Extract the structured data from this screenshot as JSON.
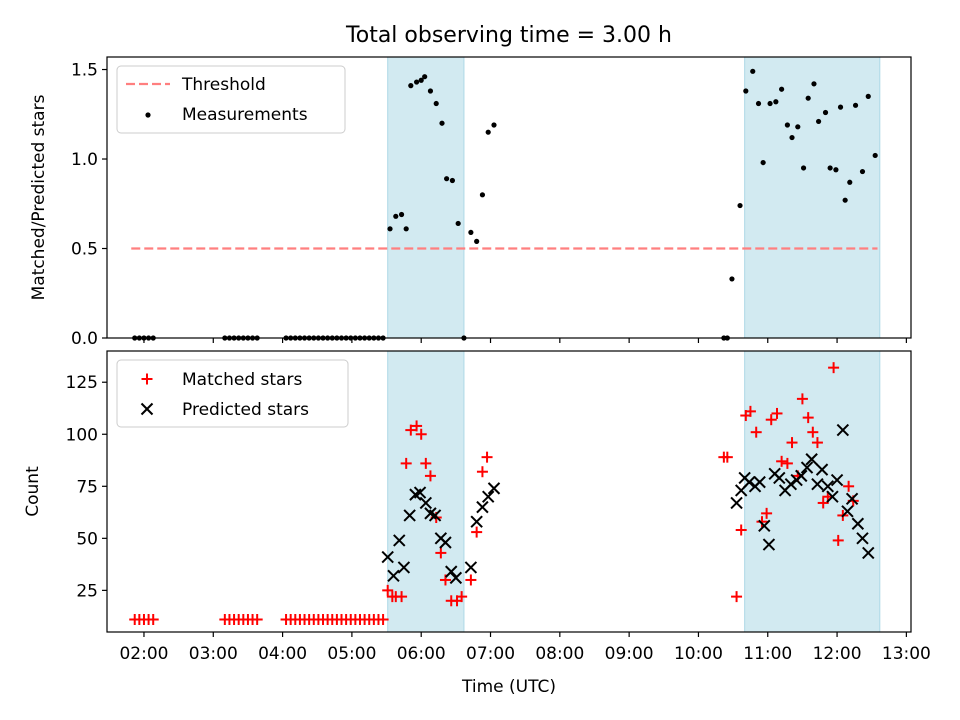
{
  "colors": {
    "threshold": "#ff7f7f",
    "measurement": "#000000",
    "matched": "#ff0000",
    "predicted": "#000000",
    "shade": "#add8e6"
  },
  "chart_data": [
    {
      "type": "scatter",
      "title": "Total observing time = 3.00 h",
      "xlabel": "",
      "ylabel": "Matched/Predicted stars",
      "xlim": [
        "01:28",
        "13:04"
      ],
      "ylim": [
        0,
        1.57
      ],
      "yticks": [
        0.0,
        0.5,
        1.0,
        1.5
      ],
      "ytick_labels": [
        "0.0",
        "0.5",
        "1.0",
        "1.5"
      ],
      "legend_position": "top-left",
      "shaded_intervals": [
        [
          "05:31",
          "06:37"
        ],
        [
          "10:40",
          "12:37"
        ]
      ],
      "threshold": {
        "name": "Threshold",
        "value": 0.5,
        "x_range": [
          "01:49",
          "12:35"
        ]
      },
      "series": [
        {
          "name": "Measurements",
          "marker": "dot",
          "points": [
            [
              "01:52",
              0
            ],
            [
              "01:56",
              0
            ],
            [
              "02:00",
              0
            ],
            [
              "02:04",
              0
            ],
            [
              "02:08",
              0
            ],
            [
              "03:10",
              0
            ],
            [
              "03:14",
              0
            ],
            [
              "03:18",
              0
            ],
            [
              "03:22",
              0
            ],
            [
              "03:26",
              0
            ],
            [
              "03:30",
              0
            ],
            [
              "03:34",
              0
            ],
            [
              "03:38",
              0
            ],
            [
              "04:03",
              0
            ],
            [
              "04:07",
              0
            ],
            [
              "04:11",
              0
            ],
            [
              "04:15",
              0
            ],
            [
              "04:19",
              0
            ],
            [
              "04:23",
              0
            ],
            [
              "04:27",
              0
            ],
            [
              "04:31",
              0
            ],
            [
              "04:35",
              0
            ],
            [
              "04:39",
              0
            ],
            [
              "04:43",
              0
            ],
            [
              "04:47",
              0
            ],
            [
              "04:51",
              0
            ],
            [
              "04:55",
              0
            ],
            [
              "04:59",
              0
            ],
            [
              "05:03",
              0
            ],
            [
              "05:07",
              0
            ],
            [
              "05:11",
              0
            ],
            [
              "05:15",
              0
            ],
            [
              "05:19",
              0
            ],
            [
              "05:23",
              0
            ],
            [
              "05:27",
              0
            ],
            [
              "05:33",
              0.61
            ],
            [
              "05:38",
              0.68
            ],
            [
              "05:43",
              0.69
            ],
            [
              "05:47",
              0.61
            ],
            [
              "05:51",
              1.41
            ],
            [
              "05:56",
              1.43
            ],
            [
              "06:00",
              1.44
            ],
            [
              "06:03",
              1.46
            ],
            [
              "06:08",
              1.38
            ],
            [
              "06:13",
              1.31
            ],
            [
              "06:18",
              1.2
            ],
            [
              "06:22",
              0.89
            ],
            [
              "06:27",
              0.88
            ],
            [
              "06:32",
              0.64
            ],
            [
              "06:37",
              0
            ],
            [
              "06:43",
              0.59
            ],
            [
              "06:48",
              0.54
            ],
            [
              "06:53",
              0.8
            ],
            [
              "06:58",
              1.15
            ],
            [
              "07:03",
              1.19
            ],
            [
              "10:22",
              0
            ],
            [
              "10:25",
              0
            ],
            [
              "10:29",
              0.33
            ],
            [
              "10:36",
              0.74
            ],
            [
              "10:41",
              1.38
            ],
            [
              "10:47",
              1.49
            ],
            [
              "10:52",
              1.31
            ],
            [
              "10:56",
              0.98
            ],
            [
              "11:02",
              1.31
            ],
            [
              "11:07",
              1.32
            ],
            [
              "11:12",
              1.39
            ],
            [
              "11:17",
              1.19
            ],
            [
              "11:21",
              1.12
            ],
            [
              "11:26",
              1.18
            ],
            [
              "11:31",
              0.95
            ],
            [
              "11:35",
              1.34
            ],
            [
              "11:40",
              1.42
            ],
            [
              "11:44",
              1.21
            ],
            [
              "11:50",
              1.26
            ],
            [
              "11:54",
              0.95
            ],
            [
              "11:59",
              0.94
            ],
            [
              "12:03",
              1.29
            ],
            [
              "12:07",
              0.77
            ],
            [
              "12:11",
              0.87
            ],
            [
              "12:16",
              1.3
            ],
            [
              "12:22",
              0.93
            ],
            [
              "12:27",
              1.35
            ],
            [
              "12:33",
              1.02
            ]
          ]
        }
      ]
    },
    {
      "type": "scatter",
      "title": "",
      "xlabel": "Time (UTC)",
      "ylabel": "Count",
      "xlim": [
        "01:28",
        "13:04"
      ],
      "ylim": [
        5,
        140
      ],
      "yticks": [
        25,
        50,
        75,
        100,
        125
      ],
      "ytick_labels": [
        "25",
        "50",
        "75",
        "100",
        "125"
      ],
      "xticks": [
        "02:00",
        "03:00",
        "04:00",
        "05:00",
        "06:00",
        "07:00",
        "08:00",
        "09:00",
        "10:00",
        "11:00",
        "12:00",
        "13:00"
      ],
      "legend_position": "top-left",
      "shaded_intervals": [
        [
          "05:31",
          "06:37"
        ],
        [
          "10:40",
          "12:37"
        ]
      ],
      "series": [
        {
          "name": "Matched stars",
          "marker": "plus",
          "points": [
            [
              "01:52",
              11
            ],
            [
              "01:56",
              11
            ],
            [
              "02:00",
              11
            ],
            [
              "02:04",
              11
            ],
            [
              "02:08",
              11
            ],
            [
              "03:10",
              11
            ],
            [
              "03:14",
              11
            ],
            [
              "03:18",
              11
            ],
            [
              "03:22",
              11
            ],
            [
              "03:26",
              11
            ],
            [
              "03:30",
              11
            ],
            [
              "03:34",
              11
            ],
            [
              "03:38",
              11
            ],
            [
              "04:03",
              11
            ],
            [
              "04:07",
              11
            ],
            [
              "04:11",
              11
            ],
            [
              "04:15",
              11
            ],
            [
              "04:19",
              11
            ],
            [
              "04:23",
              11
            ],
            [
              "04:27",
              11
            ],
            [
              "04:31",
              11
            ],
            [
              "04:35",
              11
            ],
            [
              "04:39",
              11
            ],
            [
              "04:43",
              11
            ],
            [
              "04:47",
              11
            ],
            [
              "04:51",
              11
            ],
            [
              "04:55",
              11
            ],
            [
              "04:59",
              11
            ],
            [
              "05:03",
              11
            ],
            [
              "05:07",
              11
            ],
            [
              "05:11",
              11
            ],
            [
              "05:15",
              11
            ],
            [
              "05:19",
              11
            ],
            [
              "05:23",
              11
            ],
            [
              "05:27",
              11
            ],
            [
              "05:31",
              25
            ],
            [
              "05:35",
              22
            ],
            [
              "05:38",
              22
            ],
            [
              "05:43",
              22
            ],
            [
              "05:47",
              86
            ],
            [
              "05:51",
              102
            ],
            [
              "05:56",
              104
            ],
            [
              "06:00",
              100
            ],
            [
              "06:04",
              86
            ],
            [
              "06:08",
              80
            ],
            [
              "06:13",
              60
            ],
            [
              "06:17",
              43
            ],
            [
              "06:21",
              30
            ],
            [
              "06:26",
              20
            ],
            [
              "06:31",
              20
            ],
            [
              "06:35",
              22
            ],
            [
              "06:43",
              30
            ],
            [
              "06:48",
              53
            ],
            [
              "06:53",
              82
            ],
            [
              "06:57",
              89
            ],
            [
              "10:22",
              89
            ],
            [
              "10:25",
              89
            ],
            [
              "10:33",
              22
            ],
            [
              "10:37",
              54
            ],
            [
              "10:41",
              109
            ],
            [
              "10:45",
              111
            ],
            [
              "10:50",
              101
            ],
            [
              "10:55",
              58
            ],
            [
              "10:59",
              62
            ],
            [
              "11:03",
              107
            ],
            [
              "11:08",
              110
            ],
            [
              "11:12",
              87
            ],
            [
              "11:17",
              86
            ],
            [
              "11:21",
              96
            ],
            [
              "11:26",
              80
            ],
            [
              "11:30",
              117
            ],
            [
              "11:35",
              108
            ],
            [
              "11:39",
              101
            ],
            [
              "11:43",
              96
            ],
            [
              "11:48",
              67
            ],
            [
              "11:52",
              70
            ],
            [
              "11:57",
              132
            ],
            [
              "12:01",
              49
            ],
            [
              "12:05",
              61
            ],
            [
              "12:10",
              75
            ],
            [
              "12:14",
              68
            ]
          ]
        },
        {
          "name": "Predicted stars",
          "marker": "x",
          "points": [
            [
              "05:31",
              41
            ],
            [
              "05:36",
              32
            ],
            [
              "05:41",
              49
            ],
            [
              "05:45",
              36
            ],
            [
              "05:50",
              61
            ],
            [
              "05:55",
              71
            ],
            [
              "05:59",
              72
            ],
            [
              "06:04",
              67
            ],
            [
              "06:08",
              62
            ],
            [
              "06:12",
              61
            ],
            [
              "06:17",
              50
            ],
            [
              "06:21",
              48
            ],
            [
              "06:26",
              34
            ],
            [
              "06:30",
              31
            ],
            [
              "06:43",
              36
            ],
            [
              "06:48",
              58
            ],
            [
              "06:53",
              65
            ],
            [
              "06:58",
              70
            ],
            [
              "07:03",
              74
            ],
            [
              "10:33",
              67
            ],
            [
              "10:37",
              73
            ],
            [
              "10:40",
              79
            ],
            [
              "10:44",
              77
            ],
            [
              "10:49",
              75
            ],
            [
              "10:53",
              77
            ],
            [
              "10:57",
              56
            ],
            [
              "11:01",
              47
            ],
            [
              "11:06",
              81
            ],
            [
              "11:10",
              79
            ],
            [
              "11:15",
              73
            ],
            [
              "11:20",
              76
            ],
            [
              "11:25",
              78
            ],
            [
              "11:29",
              80
            ],
            [
              "11:34",
              84
            ],
            [
              "11:38",
              88
            ],
            [
              "11:43",
              76
            ],
            [
              "11:47",
              83
            ],
            [
              "11:52",
              75
            ],
            [
              "11:56",
              70
            ],
            [
              "12:00",
              78
            ],
            [
              "12:05",
              102
            ],
            [
              "12:09",
              63
            ],
            [
              "12:13",
              69
            ],
            [
              "12:18",
              57
            ],
            [
              "12:22",
              50
            ],
            [
              "12:27",
              43
            ]
          ]
        }
      ]
    }
  ]
}
